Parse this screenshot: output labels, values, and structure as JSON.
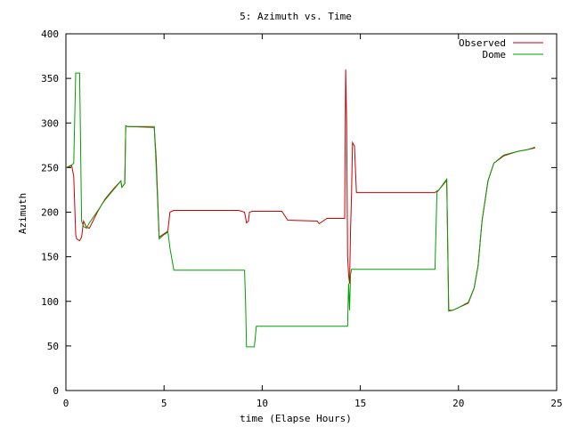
{
  "chart_data": {
    "type": "line",
    "title": "5: Azimuth vs. Time",
    "xlabel": "time (Elapse Hours)",
    "ylabel": "Azimuth",
    "xlim": [
      0,
      25
    ],
    "ylim": [
      0,
      400
    ],
    "xticks": [
      0,
      5,
      10,
      15,
      20,
      25
    ],
    "yticks": [
      0,
      50,
      100,
      150,
      200,
      250,
      300,
      350,
      400
    ],
    "grid": false,
    "legend": "top-right",
    "series": [
      {
        "name": "Observed",
        "color": "#cc0000",
        "x": [
          0.0,
          0.3,
          0.4,
          0.5,
          0.55,
          0.7,
          0.8,
          0.9,
          1.05,
          1.2,
          1.6,
          2.0,
          2.5,
          2.8,
          2.85,
          3.0,
          3.05,
          3.15,
          4.5,
          4.6,
          4.75,
          4.95,
          5.15,
          5.2,
          5.3,
          5.5,
          8.8,
          8.95,
          9.1,
          9.2,
          9.3,
          9.35,
          9.5,
          11.0,
          11.3,
          12.8,
          12.9,
          13.1,
          13.3,
          14.2,
          14.25,
          14.3,
          14.35,
          14.4,
          14.45,
          14.5,
          14.55,
          14.6,
          14.7,
          14.8,
          15.5,
          18.8,
          19.0,
          19.3,
          19.4,
          19.5,
          19.7,
          20.0,
          20.5,
          20.8,
          21.0,
          21.2,
          21.5,
          21.8,
          22.3,
          23.0,
          23.5,
          23.9
        ],
        "y": [
          250,
          252,
          240,
          175,
          170,
          168,
          172,
          190,
          183,
          182,
          200,
          215,
          228,
          235,
          228,
          232,
          297,
          296,
          295,
          260,
          172,
          175,
          178,
          180,
          200,
          202,
          202,
          201,
          200,
          188,
          190,
          200,
          201,
          201,
          191,
          190,
          187,
          190,
          193,
          193,
          360,
          300,
          150,
          130,
          120,
          180,
          220,
          278,
          274,
          222,
          222,
          222,
          225,
          233,
          236,
          90,
          90,
          93,
          98,
          115,
          140,
          190,
          235,
          255,
          263,
          268,
          270,
          272
        ]
      },
      {
        "name": "Dome",
        "color": "#00a000",
        "x": [
          0.0,
          0.3,
          0.4,
          0.5,
          0.55,
          0.7,
          0.8,
          0.9,
          1.05,
          1.2,
          1.6,
          2.0,
          2.5,
          2.8,
          2.85,
          3.0,
          3.05,
          3.15,
          4.5,
          4.6,
          4.75,
          4.95,
          5.15,
          5.2,
          5.3,
          5.5,
          9.1,
          9.15,
          9.2,
          9.6,
          9.7,
          14.35,
          14.4,
          14.45,
          14.5,
          14.55,
          18.8,
          18.9,
          19.4,
          19.5,
          19.7,
          20.0,
          20.5,
          20.8,
          21.0,
          21.2,
          21.5,
          21.8,
          22.3,
          23.0,
          23.5,
          23.9
        ],
        "y": [
          250,
          253,
          255,
          356,
          356,
          356,
          190,
          184,
          182,
          188,
          201,
          214,
          227,
          235,
          228,
          232,
          297,
          296,
          296,
          250,
          170,
          174,
          177,
          178,
          160,
          135,
          135,
          100,
          49,
          49,
          72,
          72,
          120,
          90,
          130,
          136,
          136,
          222,
          237,
          89,
          90,
          93,
          99,
          115,
          140,
          190,
          235,
          255,
          264,
          268,
          270,
          273
        ]
      }
    ]
  }
}
